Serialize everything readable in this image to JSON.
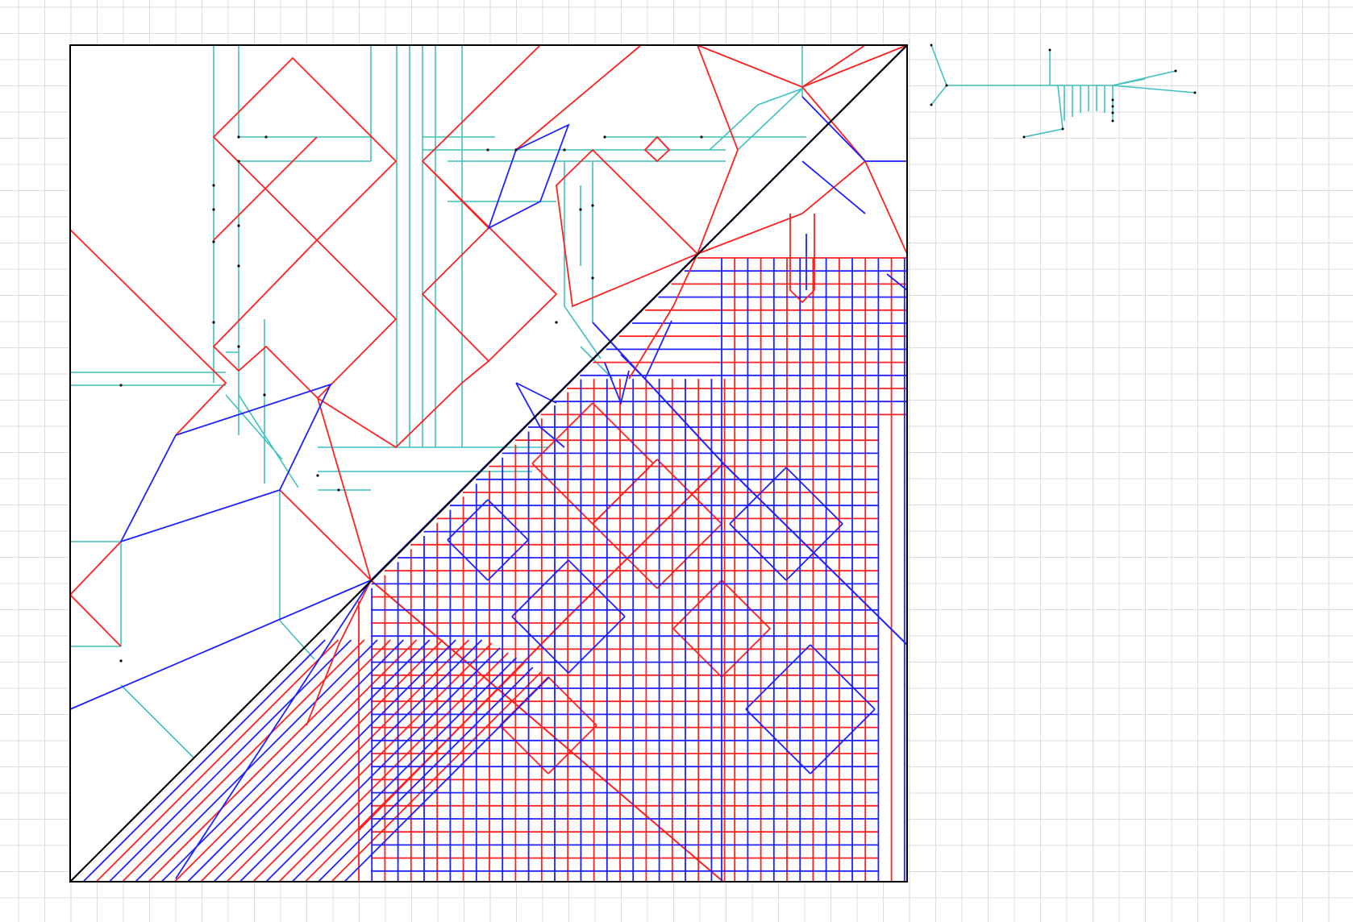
{
  "app": {
    "view": "crease-pattern-editor",
    "background_grid": true
  },
  "colors": {
    "grid": "#dcdcdc",
    "paper_border": "#000000",
    "diagonal": "#000000",
    "mountain": "#ff2020",
    "valley": "#2020ff",
    "auxiliary": "#40c0c0",
    "vertex_dot": "#000000"
  },
  "legend": {
    "mountain_fold": "red",
    "valley_fold": "blue",
    "auxiliary_line": "cyan"
  },
  "tree_preview": {
    "description_visible": false
  }
}
